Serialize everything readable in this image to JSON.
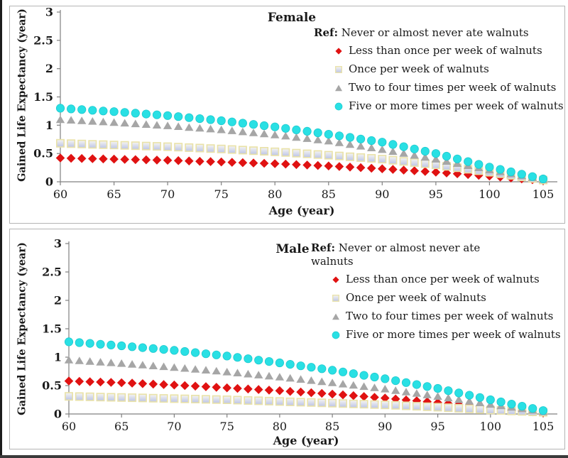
{
  "figure": {
    "description": "Gained life expectancy by age and walnut consumption frequency, two scatter panels (Female, Male)"
  },
  "chart_data": [
    {
      "type": "scatter",
      "title": "Female",
      "xlabel": "Age (year)",
      "ylabel": "Gained Life Expectancy (year)",
      "xlim": [
        60,
        105
      ],
      "ylim": [
        0,
        3
      ],
      "xticks": [
        "60",
        "65",
        "70",
        "75",
        "80",
        "85",
        "90",
        "95",
        "100",
        "105"
      ],
      "yticks": [
        "3",
        "2.5",
        "2",
        "1.5",
        "1",
        "0.5",
        "0"
      ],
      "grid": false,
      "legend_position": "top-right-inside",
      "ref_prefix": "Ref:",
      "ref_text": "Never or almost never ate walnuts",
      "ages": [
        60,
        61,
        62,
        63,
        64,
        65,
        66,
        67,
        68,
        69,
        70,
        71,
        72,
        73,
        74,
        75,
        76,
        77,
        78,
        79,
        80,
        81,
        82,
        83,
        84,
        85,
        86,
        87,
        88,
        89,
        90,
        91,
        92,
        93,
        94,
        95,
        96,
        97,
        98,
        99,
        100,
        101,
        102,
        103,
        104,
        105
      ],
      "series": [
        {
          "name": "Less than once per week of walnuts",
          "marker": "diamond",
          "color": "#e01212",
          "values": [
            0.42,
            0.416,
            0.412,
            0.408,
            0.404,
            0.4,
            0.396,
            0.392,
            0.388,
            0.384,
            0.38,
            0.374,
            0.368,
            0.362,
            0.356,
            0.35,
            0.344,
            0.338,
            0.332,
            0.326,
            0.32,
            0.312,
            0.304,
            0.296,
            0.288,
            0.28,
            0.27,
            0.26,
            0.25,
            0.24,
            0.23,
            0.218,
            0.206,
            0.194,
            0.182,
            0.17,
            0.156,
            0.142,
            0.128,
            0.114,
            0.1,
            0.084,
            0.068,
            0.052,
            0.036,
            0.02
          ]
        },
        {
          "name": "Once per week of walnuts",
          "marker": "square",
          "color": "#bcc4e6",
          "color2": "#f6f5f2",
          "border": "#e9e2a8",
          "values": [
            0.68,
            0.674,
            0.668,
            0.662,
            0.656,
            0.65,
            0.644,
            0.638,
            0.632,
            0.626,
            0.62,
            0.612,
            0.604,
            0.596,
            0.588,
            0.58,
            0.57,
            0.56,
            0.55,
            0.54,
            0.53,
            0.518,
            0.506,
            0.494,
            0.482,
            0.47,
            0.456,
            0.442,
            0.428,
            0.414,
            0.4,
            0.38,
            0.36,
            0.34,
            0.32,
            0.3,
            0.274,
            0.248,
            0.222,
            0.196,
            0.17,
            0.142,
            0.114,
            0.086,
            0.058,
            0.03
          ]
        },
        {
          "name": "Two to four times per week of walnuts",
          "marker": "triangle",
          "color": "#a6a6a6",
          "values": [
            1.1,
            1.09,
            1.08,
            1.07,
            1.06,
            1.05,
            1.038,
            1.026,
            1.014,
            1.002,
            0.99,
            0.976,
            0.962,
            0.948,
            0.934,
            0.92,
            0.902,
            0.884,
            0.866,
            0.848,
            0.83,
            0.808,
            0.786,
            0.764,
            0.742,
            0.72,
            0.69,
            0.66,
            0.63,
            0.6,
            0.57,
            0.536,
            0.502,
            0.468,
            0.434,
            0.4,
            0.362,
            0.324,
            0.286,
            0.248,
            0.21,
            0.176,
            0.142,
            0.108,
            0.074,
            0.04
          ]
        },
        {
          "name": "Five or more times per week of walnuts",
          "marker": "circle",
          "color": "#29e0e4",
          "border": "#1ec9ce",
          "values": [
            1.3,
            1.288,
            1.276,
            1.264,
            1.252,
            1.24,
            1.226,
            1.212,
            1.198,
            1.184,
            1.17,
            1.152,
            1.134,
            1.116,
            1.098,
            1.08,
            1.058,
            1.036,
            1.014,
            0.992,
            0.97,
            0.944,
            0.918,
            0.892,
            0.866,
            0.84,
            0.812,
            0.784,
            0.756,
            0.728,
            0.7,
            0.66,
            0.62,
            0.58,
            0.54,
            0.5,
            0.452,
            0.404,
            0.356,
            0.308,
            0.26,
            0.218,
            0.176,
            0.134,
            0.092,
            0.05
          ]
        }
      ]
    },
    {
      "type": "scatter",
      "title": "Male",
      "xlabel": "Age (year)",
      "ylabel": "Gained Life Expectancy (year)",
      "xlim": [
        60,
        105
      ],
      "ylim": [
        0,
        3
      ],
      "xticks": [
        "60",
        "65",
        "70",
        "75",
        "80",
        "85",
        "90",
        "95",
        "100",
        "105"
      ],
      "yticks": [
        "3",
        "2.5",
        "2",
        "1.5",
        "1",
        "0.5",
        "0"
      ],
      "grid": false,
      "legend_position": "top-right-inside",
      "ref_prefix": "Ref:",
      "ref_text": "Never or almost never ate walnuts",
      "ages": [
        60,
        61,
        62,
        63,
        64,
        65,
        66,
        67,
        68,
        69,
        70,
        71,
        72,
        73,
        74,
        75,
        76,
        77,
        78,
        79,
        80,
        81,
        82,
        83,
        84,
        85,
        86,
        87,
        88,
        89,
        90,
        91,
        92,
        93,
        94,
        95,
        96,
        97,
        98,
        99,
        100,
        101,
        102,
        103,
        104,
        105
      ],
      "series": [
        {
          "name": "Less than once per week of walnuts",
          "marker": "diamond",
          "color": "#e01212",
          "values": [
            0.58,
            0.574,
            0.568,
            0.562,
            0.556,
            0.55,
            0.542,
            0.534,
            0.526,
            0.518,
            0.51,
            0.5,
            0.49,
            0.48,
            0.47,
            0.46,
            0.45,
            0.44,
            0.43,
            0.42,
            0.41,
            0.398,
            0.386,
            0.374,
            0.362,
            0.35,
            0.336,
            0.322,
            0.308,
            0.294,
            0.28,
            0.264,
            0.248,
            0.232,
            0.216,
            0.2,
            0.182,
            0.164,
            0.146,
            0.128,
            0.11,
            0.092,
            0.074,
            0.056,
            0.038,
            0.02
          ]
        },
        {
          "name": "Once per week of walnuts",
          "marker": "square",
          "color": "#bcc4e6",
          "color2": "#f6f5f2",
          "border": "#e9e2a8",
          "values": [
            0.31,
            0.306,
            0.302,
            0.298,
            0.294,
            0.29,
            0.286,
            0.282,
            0.278,
            0.274,
            0.27,
            0.266,
            0.262,
            0.258,
            0.254,
            0.25,
            0.244,
            0.238,
            0.232,
            0.226,
            0.22,
            0.214,
            0.208,
            0.202,
            0.196,
            0.19,
            0.184,
            0.178,
            0.172,
            0.166,
            0.16,
            0.152,
            0.144,
            0.136,
            0.128,
            0.12,
            0.11,
            0.1,
            0.09,
            0.08,
            0.07,
            0.062,
            0.054,
            0.046,
            0.038,
            0.03
          ]
        },
        {
          "name": "Two to four times per week of walnuts",
          "marker": "triangle",
          "color": "#a6a6a6",
          "values": [
            0.95,
            0.938,
            0.926,
            0.914,
            0.902,
            0.89,
            0.876,
            0.862,
            0.848,
            0.834,
            0.82,
            0.804,
            0.788,
            0.772,
            0.756,
            0.74,
            0.722,
            0.704,
            0.686,
            0.668,
            0.65,
            0.63,
            0.61,
            0.59,
            0.57,
            0.55,
            0.528,
            0.506,
            0.484,
            0.462,
            0.44,
            0.414,
            0.388,
            0.362,
            0.336,
            0.31,
            0.282,
            0.254,
            0.226,
            0.198,
            0.17,
            0.144,
            0.118,
            0.092,
            0.066,
            0.04
          ]
        },
        {
          "name": "Five or more times per week of walnuts",
          "marker": "circle",
          "color": "#29e0e4",
          "border": "#1ec9ce",
          "values": [
            1.27,
            1.256,
            1.242,
            1.228,
            1.214,
            1.2,
            1.184,
            1.168,
            1.152,
            1.136,
            1.12,
            1.1,
            1.08,
            1.06,
            1.04,
            1.02,
            0.996,
            0.972,
            0.948,
            0.924,
            0.9,
            0.874,
            0.848,
            0.822,
            0.796,
            0.77,
            0.74,
            0.71,
            0.68,
            0.65,
            0.62,
            0.586,
            0.552,
            0.518,
            0.484,
            0.45,
            0.41,
            0.37,
            0.33,
            0.29,
            0.25,
            0.212,
            0.174,
            0.136,
            0.098,
            0.06
          ]
        }
      ]
    }
  ]
}
